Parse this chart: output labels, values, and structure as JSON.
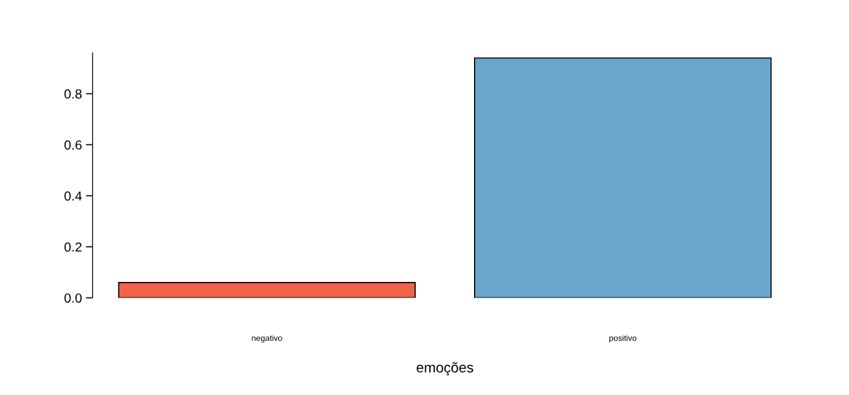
{
  "chart_data": {
    "type": "bar",
    "xlabel": "emoções",
    "categories": [
      "negativo",
      "positivo"
    ],
    "values": [
      0.06,
      0.94
    ],
    "colors": [
      "#f0634b",
      "#6aa6cc"
    ],
    "ylim": [
      0,
      0.96
    ],
    "yticks": [
      {
        "value": 0,
        "label": "0.0"
      },
      0.2,
      0.4,
      0.6,
      0.8
    ],
    "grid": false,
    "legend": false
  }
}
